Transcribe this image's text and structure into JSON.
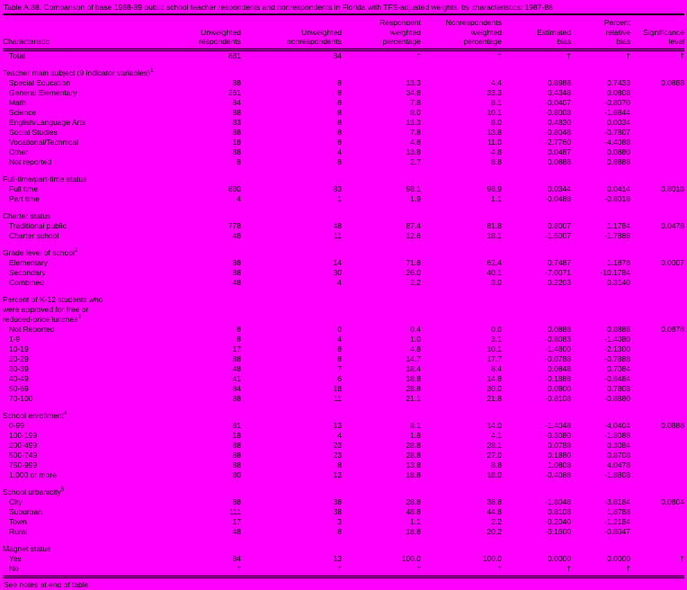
{
  "page": {
    "background": "#ff00ff",
    "text_color": "#000000"
  },
  "title": "Table A.88. Comparison of base 1988-89 public school teacher respondents and nonrespondents in Florida with TFS-adjusted weights, by characteristics: 1987-88",
  "footer": "See notes at end of table.",
  "columns": [
    "Characteristic",
    "Unweighted\nrespondents",
    "Unweighted\nnonrespondents",
    "Respondent\nweighted\npercentage",
    "Nonrespondents\nweighted\npercentage",
    "Estimated\nbias",
    "Percent\nrelative\nbias",
    "Significance\nlevel"
  ],
  "rows": [
    {
      "type": "data",
      "label": "Total",
      "indent": true,
      "values": [
        "881",
        "84",
        "†",
        "†",
        "†",
        "†",
        "†"
      ]
    },
    {
      "type": "blank"
    },
    {
      "type": "section",
      "label": "Teacher main subject (9 indicator variables)",
      "sup": "1"
    },
    {
      "type": "data",
      "label": "Special Education",
      "indent": true,
      "values": [
        "88",
        "8",
        "13.3",
        "4.4",
        "0.8988",
        "0.7433",
        "0.0888"
      ]
    },
    {
      "type": "data",
      "label": "General Elementary",
      "indent": true,
      "values": [
        "261",
        "8",
        "34.8",
        "33.3",
        "0.4348",
        "0.0808",
        ""
      ]
    },
    {
      "type": "data",
      "label": "Math",
      "indent": true,
      "values": [
        "84",
        "8",
        "7.8",
        "8.1",
        "-0.0407",
        "-0.8070",
        ""
      ]
    },
    {
      "type": "data",
      "label": "Science",
      "indent": true,
      "values": [
        "88",
        "8",
        "8.0",
        "10.1",
        "-0.8008",
        "-1.8844",
        ""
      ]
    },
    {
      "type": "data",
      "label": "English/Language Arts",
      "indent": true,
      "values": [
        "83",
        "8",
        "13.3",
        "8.0",
        "0.4830",
        "0.0034",
        ""
      ]
    },
    {
      "type": "data",
      "label": "Social Studies",
      "indent": true,
      "values": [
        "88",
        "8",
        "7.8",
        "13.8",
        "-0.8048",
        "-0.7807",
        ""
      ]
    },
    {
      "type": "data",
      "label": "Vocational/Technical",
      "indent": true,
      "values": [
        "18",
        "8",
        "4.8",
        "11.0",
        "-2.7760",
        "-4.4088",
        ""
      ]
    },
    {
      "type": "data",
      "label": "Other",
      "indent": true,
      "values": [
        "88",
        "4",
        "13.8",
        "4.8",
        "0.0487",
        "0.0880",
        ""
      ]
    },
    {
      "type": "data",
      "label": "Not reported",
      "indent": true,
      "values": [
        "8",
        "8",
        "2.7",
        "8.8",
        "0.0888",
        "0.8888",
        ""
      ]
    },
    {
      "type": "blank"
    },
    {
      "type": "section",
      "label": "Full-time/part-time status",
      "sup": ""
    },
    {
      "type": "data",
      "label": "Full time",
      "indent": true,
      "values": [
        "880",
        "83",
        "98.1",
        "98.9",
        "0.0344",
        "0.0414",
        "0.8018"
      ]
    },
    {
      "type": "data",
      "label": "Part time",
      "indent": true,
      "values": [
        "4",
        "1",
        "1.9",
        "1.1",
        "-0.0488",
        "-0.8018",
        ""
      ]
    },
    {
      "type": "blank"
    },
    {
      "type": "section",
      "label": "Charter status",
      "sup": ""
    },
    {
      "type": "data",
      "label": "Traditional public",
      "indent": true,
      "values": [
        "778",
        "48",
        "87.4",
        "81.8",
        "0.8007",
        "1.1784",
        "0.0478"
      ]
    },
    {
      "type": "data",
      "label": "Charter school",
      "indent": true,
      "values": [
        "48",
        "11",
        "12.6",
        "18.1",
        "-1.5007",
        "-1.7888",
        ""
      ]
    },
    {
      "type": "blank"
    },
    {
      "type": "section",
      "label": "Grade level of school",
      "sup": "2"
    },
    {
      "type": "data",
      "label": "Elementary",
      "indent": true,
      "values": [
        "88",
        "14",
        "71.8",
        "62.4",
        "0.7487",
        "1.1878",
        "0.0007"
      ]
    },
    {
      "type": "data",
      "label": "Secondary",
      "indent": true,
      "values": [
        "88",
        "30",
        "26.0",
        "40.1",
        "-7.0071",
        "-10.1784",
        ""
      ]
    },
    {
      "type": "data",
      "label": "Combined",
      "indent": true,
      "values": [
        "48",
        "4",
        "2.2",
        "3.0",
        "0.2203",
        "0.3140",
        ""
      ]
    },
    {
      "type": "blank"
    },
    {
      "type": "section",
      "label": "Percent of K-12 students who",
      "sup": ""
    },
    {
      "type": "section",
      "label": "were approved for free or",
      "sup": "",
      "indent": true
    },
    {
      "type": "section",
      "label": "reduced-price lunches",
      "sup": "3",
      "indent": true
    },
    {
      "type": "data",
      "label": "Not Reported",
      "indent": true,
      "values": [
        "8",
        "0",
        "0.4",
        "0.0",
        "0.0888",
        "0.8888",
        "0.0878"
      ]
    },
    {
      "type": "data",
      "label": "1-9",
      "indent": true,
      "values": [
        "8",
        "4",
        "1.0",
        "3.1",
        "-0.8083",
        "-1.4080",
        ""
      ]
    },
    {
      "type": "data",
      "label": "10-19",
      "indent": true,
      "values": [
        "17",
        "8",
        "4.8",
        "10.1",
        "-1.4800",
        "-2.1300",
        ""
      ]
    },
    {
      "type": "data",
      "label": "20-29",
      "indent": true,
      "values": [
        "88",
        "8",
        "14.7",
        "17.7",
        "-0.0788",
        "-0.7888",
        ""
      ]
    },
    {
      "type": "data",
      "label": "30-39",
      "indent": true,
      "values": [
        "48",
        "7",
        "18.4",
        "8.4",
        "0.0848",
        "0.7084",
        ""
      ]
    },
    {
      "type": "data",
      "label": "40-49",
      "indent": true,
      "values": [
        "41",
        "6",
        "18.8",
        "14.8",
        "-0.1888",
        "-0.8484",
        ""
      ]
    },
    {
      "type": "data",
      "label": "50-69",
      "indent": true,
      "values": [
        "84",
        "18",
        "28.8",
        "30.0",
        "0.0800",
        "0.7808",
        ""
      ]
    },
    {
      "type": "data",
      "label": "70-100",
      "indent": true,
      "values": [
        "88",
        "11",
        "21.1",
        "21.8",
        "-0.8108",
        "-0.8880",
        ""
      ]
    },
    {
      "type": "blank"
    },
    {
      "type": "section",
      "label": "School enrollment",
      "sup": "4"
    },
    {
      "type": "data",
      "label": "0-99",
      "indent": true,
      "values": [
        "81",
        "13",
        "8.1",
        "14.0",
        "-1.4048",
        "-4.0404",
        "0.0888"
      ]
    },
    {
      "type": "data",
      "label": "100-199",
      "indent": true,
      "values": [
        "18",
        "4",
        "1.8",
        "4.1",
        "-0.3080",
        "-1.8088",
        ""
      ]
    },
    {
      "type": "data",
      "label": "200-499",
      "indent": true,
      "values": [
        "88",
        "23",
        "28.8",
        "28.1",
        "0.0788",
        "0.3084",
        ""
      ]
    },
    {
      "type": "data",
      "label": "500-749",
      "indent": true,
      "values": [
        "88",
        "23",
        "28.8",
        "27.0",
        "0.1880",
        "0.8708",
        ""
      ]
    },
    {
      "type": "data",
      "label": "750-999",
      "indent": true,
      "values": [
        "88",
        "8",
        "13.8",
        "8.8",
        "1.0808",
        "4.0478",
        ""
      ]
    },
    {
      "type": "data",
      "label": "1,000 or more",
      "indent": true,
      "values": [
        "80",
        "13",
        "18.8",
        "18.0",
        "-0.4088",
        "-1.8808",
        ""
      ]
    },
    {
      "type": "blank"
    },
    {
      "type": "section",
      "label": "School urbanicity",
      "sup": "5"
    },
    {
      "type": "data",
      "label": "City",
      "indent": true,
      "values": [
        "88",
        "38",
        "28.8",
        "38.8",
        "-1.8048",
        "-3.8184",
        "0.0804"
      ]
    },
    {
      "type": "data",
      "label": "Suburban",
      "indent": true,
      "values": [
        "111",
        "38",
        "48.8",
        "44.8",
        "0.8108",
        "1.8788",
        ""
      ]
    },
    {
      "type": "data",
      "label": "Town",
      "indent": true,
      "values": [
        "17",
        "3",
        "1.1",
        "2.2",
        "-0.2040",
        "-1.2184",
        ""
      ]
    },
    {
      "type": "data",
      "label": "Rural",
      "indent": true,
      "values": [
        "48",
        "8",
        "18.8",
        "20.2",
        "-0.1600",
        "-0.8047",
        ""
      ]
    },
    {
      "type": "blank"
    },
    {
      "type": "section",
      "label": "Magnet status",
      "sup": ""
    },
    {
      "type": "data",
      "label": "Yes",
      "indent": true,
      "values": [
        "84",
        "13",
        "100.0",
        "100.0",
        "0.0000",
        "0.0000",
        "†"
      ]
    },
    {
      "type": "data",
      "label": "No",
      "indent": true,
      "values": [
        "†",
        "†",
        "†",
        "†",
        "†",
        "†",
        ""
      ]
    }
  ]
}
